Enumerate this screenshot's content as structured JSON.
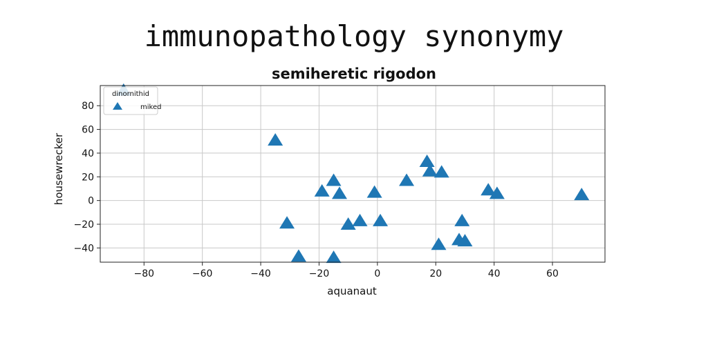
{
  "page": {
    "title": "immunopathology synonymy"
  },
  "chart_data": {
    "type": "scatter",
    "title": "semiheretic rigodon",
    "xlabel": "aquanaut",
    "ylabel": "housewrecker",
    "xlim": [
      -95,
      78
    ],
    "ylim": [
      -52,
      97
    ],
    "xticks": [
      -80,
      -60,
      -40,
      -20,
      0,
      20,
      40,
      60
    ],
    "yticks": [
      -40,
      -20,
      0,
      20,
      40,
      60,
      80
    ],
    "grid": true,
    "legend": {
      "title": "dinornithid",
      "placement": "top-left"
    },
    "series": [
      {
        "name": "miked",
        "marker": "triangle",
        "color": "#1f77b4",
        "x": [
          -87,
          -35,
          -19,
          -15,
          -13,
          -31,
          -10,
          -6,
          -1,
          1,
          10,
          -27,
          -15,
          17,
          18,
          22,
          21,
          28,
          29,
          30,
          38,
          41,
          70
        ],
        "y": [
          93,
          51,
          8,
          17,
          6,
          -19,
          -20,
          -17,
          7,
          -17,
          17,
          -47,
          -48,
          33,
          25,
          24,
          -37,
          -33,
          -17,
          -34,
          9,
          6,
          5
        ]
      }
    ]
  }
}
